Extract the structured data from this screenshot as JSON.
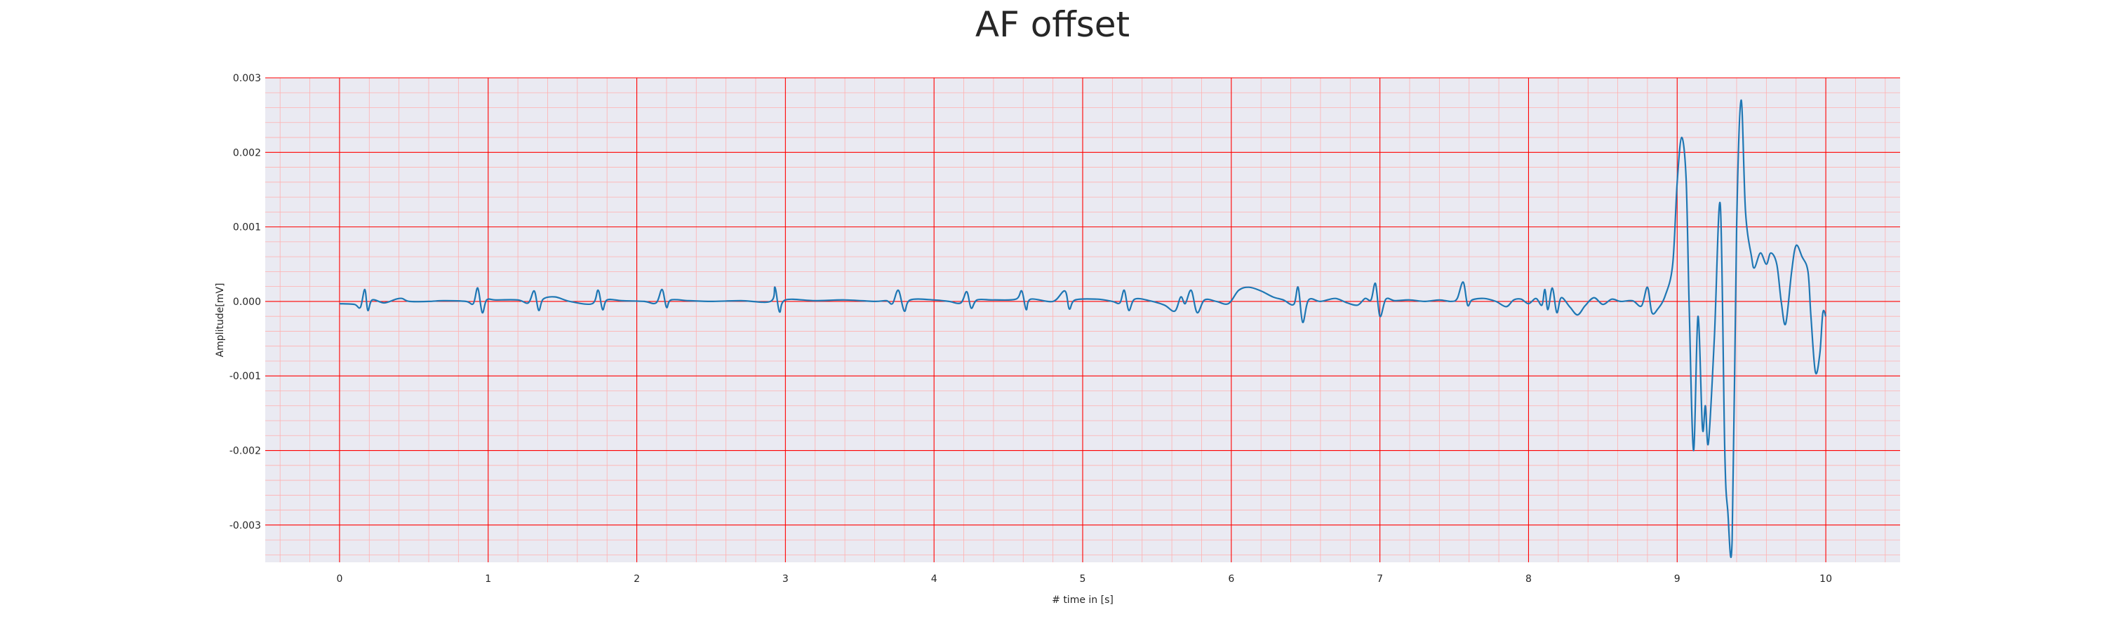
{
  "chart_data": {
    "type": "line",
    "title": "AF offset",
    "xlabel": "# time in [s]",
    "ylabel": "Amplitude[mV]",
    "xlim": [
      -0.5,
      10.5
    ],
    "ylim": [
      -0.0035,
      0.003
    ],
    "xticks": [
      0,
      1,
      2,
      3,
      4,
      5,
      6,
      7,
      8,
      9,
      10
    ],
    "yticks": [
      -0.003,
      -0.002,
      -0.001,
      0.0,
      0.001,
      0.002,
      0.003
    ],
    "ytick_labels": [
      "-0.003",
      "-0.002",
      "-0.001",
      "0.000",
      "0.001",
      "0.002",
      "0.003"
    ],
    "grid": true,
    "minor_grid": true,
    "colors": {
      "background": "#eaeaf2",
      "major_grid": "#ff0000",
      "minor_grid": "#ffb0b0",
      "line": "#1f77b4"
    },
    "series": [
      {
        "points": [
          [
            0.0,
            -3e-05
          ],
          [
            0.1,
            -4e-05
          ],
          [
            0.14,
            -8e-05
          ],
          [
            0.17,
            0.00016
          ],
          [
            0.19,
            -0.00012
          ],
          [
            0.22,
            2e-05
          ],
          [
            0.3,
            -2e-05
          ],
          [
            0.38,
            3e-05
          ],
          [
            0.42,
            4e-05
          ],
          [
            0.47,
            0.0
          ],
          [
            0.6,
            0.0
          ],
          [
            0.7,
            1e-05
          ],
          [
            0.85,
            0.0
          ],
          [
            0.9,
            -3e-05
          ],
          [
            0.93,
            0.00018
          ],
          [
            0.96,
            -0.00015
          ],
          [
            0.99,
            2e-05
          ],
          [
            1.05,
            2e-05
          ],
          [
            1.2,
            2e-05
          ],
          [
            1.27,
            -2e-05
          ],
          [
            1.31,
            0.00014
          ],
          [
            1.34,
            -0.00012
          ],
          [
            1.37,
            3e-05
          ],
          [
            1.45,
            6e-05
          ],
          [
            1.55,
            0.0
          ],
          [
            1.7,
            -3e-05
          ],
          [
            1.74,
            0.00015
          ],
          [
            1.77,
            -0.00011
          ],
          [
            1.8,
            2e-05
          ],
          [
            1.9,
            1e-05
          ],
          [
            2.05,
            0.0
          ],
          [
            2.13,
            -2e-05
          ],
          [
            2.17,
            0.00016
          ],
          [
            2.2,
            -8e-05
          ],
          [
            2.23,
            2e-05
          ],
          [
            2.35,
            1e-05
          ],
          [
            2.5,
            0.0
          ],
          [
            2.7,
            1e-05
          ],
          [
            2.9,
            0.0
          ],
          [
            2.93,
            0.00019
          ],
          [
            2.96,
            -0.00014
          ],
          [
            3.0,
            2e-05
          ],
          [
            3.2,
            1e-05
          ],
          [
            3.4,
            2e-05
          ],
          [
            3.6,
            0.0
          ],
          [
            3.68,
            1e-05
          ],
          [
            3.72,
            -3e-05
          ],
          [
            3.76,
            0.00015
          ],
          [
            3.8,
            -0.00013
          ],
          [
            3.84,
            2e-05
          ],
          [
            4.0,
            2e-05
          ],
          [
            4.1,
            0.0
          ],
          [
            4.18,
            -2e-05
          ],
          [
            4.22,
            0.00013
          ],
          [
            4.25,
            -9e-05
          ],
          [
            4.29,
            2e-05
          ],
          [
            4.4,
            2e-05
          ],
          [
            4.55,
            3e-05
          ],
          [
            4.59,
            0.00014
          ],
          [
            4.62,
            -0.00011
          ],
          [
            4.65,
            3e-05
          ],
          [
            4.8,
            0.0
          ],
          [
            4.88,
            0.00014
          ],
          [
            4.91,
            -0.0001
          ],
          [
            4.95,
            2e-05
          ],
          [
            5.1,
            3e-05
          ],
          [
            5.2,
            0.0
          ],
          [
            5.25,
            -2e-05
          ],
          [
            5.28,
            0.00015
          ],
          [
            5.31,
            -0.00012
          ],
          [
            5.35,
            3e-05
          ],
          [
            5.45,
            1e-05
          ],
          [
            5.55,
            -5e-05
          ],
          [
            5.62,
            -0.00013
          ],
          [
            5.66,
            6e-05
          ],
          [
            5.69,
            -3e-05
          ],
          [
            5.73,
            0.00015
          ],
          [
            5.77,
            -0.00015
          ],
          [
            5.82,
            2e-05
          ],
          [
            5.9,
            0.0
          ],
          [
            5.98,
            -3e-05
          ],
          [
            6.05,
            0.00015
          ],
          [
            6.12,
            0.00019
          ],
          [
            6.2,
            0.00014
          ],
          [
            6.28,
            6e-05
          ],
          [
            6.35,
            2e-05
          ],
          [
            6.42,
            -4e-05
          ],
          [
            6.45,
            0.00019
          ],
          [
            6.48,
            -0.00028
          ],
          [
            6.52,
            2e-05
          ],
          [
            6.6,
            0.0
          ],
          [
            6.7,
            4e-05
          ],
          [
            6.78,
            -2e-05
          ],
          [
            6.85,
            -5e-05
          ],
          [
            6.9,
            4e-05
          ],
          [
            6.94,
            2e-05
          ],
          [
            6.97,
            0.00024
          ],
          [
            7.0,
            -0.0002
          ],
          [
            7.04,
            3e-05
          ],
          [
            7.1,
            1e-05
          ],
          [
            7.2,
            2e-05
          ],
          [
            7.3,
            0.0
          ],
          [
            7.4,
            2e-05
          ],
          [
            7.48,
            0.0
          ],
          [
            7.52,
            4e-05
          ],
          [
            7.56,
            0.00026
          ],
          [
            7.59,
            -5e-05
          ],
          [
            7.62,
            2e-05
          ],
          [
            7.7,
            4e-05
          ],
          [
            7.78,
            0.0
          ],
          [
            7.85,
            -7e-05
          ],
          [
            7.9,
            2e-05
          ],
          [
            7.95,
            3e-05
          ],
          [
            8.0,
            -3e-05
          ],
          [
            8.05,
            4e-05
          ],
          [
            8.09,
            -5e-05
          ],
          [
            8.11,
            0.00016
          ],
          [
            8.13,
            -0.00011
          ],
          [
            8.16,
            0.00018
          ],
          [
            8.19,
            -0.00015
          ],
          [
            8.22,
            5e-05
          ],
          [
            8.28,
            -8e-05
          ],
          [
            8.33,
            -0.00018
          ],
          [
            8.38,
            -6e-05
          ],
          [
            8.44,
            5e-05
          ],
          [
            8.5,
            -4e-05
          ],
          [
            8.56,
            3e-05
          ],
          [
            8.62,
            0.0
          ],
          [
            8.7,
            1e-05
          ],
          [
            8.76,
            -6e-05
          ],
          [
            8.8,
            0.00019
          ],
          [
            8.83,
            -0.00015
          ],
          [
            8.87,
            -0.0001
          ],
          [
            8.92,
            8e-05
          ],
          [
            8.97,
            0.0005
          ],
          [
            9.0,
            0.0016
          ],
          [
            9.03,
            0.0022
          ],
          [
            9.06,
            0.00165
          ],
          [
            9.08,
            0.0
          ],
          [
            9.11,
            -0.002
          ],
          [
            9.14,
            -0.0002
          ],
          [
            9.17,
            -0.0017
          ],
          [
            9.19,
            -0.0014
          ],
          [
            9.21,
            -0.0019
          ],
          [
            9.25,
            -0.0005
          ],
          [
            9.29,
            0.0013
          ],
          [
            9.32,
            -0.002
          ],
          [
            9.34,
            -0.0028
          ],
          [
            9.37,
            -0.0032
          ],
          [
            9.4,
            0.001
          ],
          [
            9.43,
            0.0027
          ],
          [
            9.46,
            0.0012
          ],
          [
            9.5,
            0.0006
          ],
          [
            9.52,
            0.00045
          ],
          [
            9.56,
            0.00065
          ],
          [
            9.6,
            0.0005
          ],
          [
            9.63,
            0.00065
          ],
          [
            9.67,
            0.0005
          ],
          [
            9.7,
            0.0
          ],
          [
            9.73,
            -0.0003
          ],
          [
            9.77,
            0.0004
          ],
          [
            9.8,
            0.00075
          ],
          [
            9.84,
            0.0006
          ],
          [
            9.88,
            0.0004
          ],
          [
            9.9,
            -0.0002
          ],
          [
            9.93,
            -0.00095
          ],
          [
            9.96,
            -0.0007
          ],
          [
            9.98,
            -0.00015
          ],
          [
            10.0,
            -0.0002
          ]
        ]
      }
    ]
  }
}
